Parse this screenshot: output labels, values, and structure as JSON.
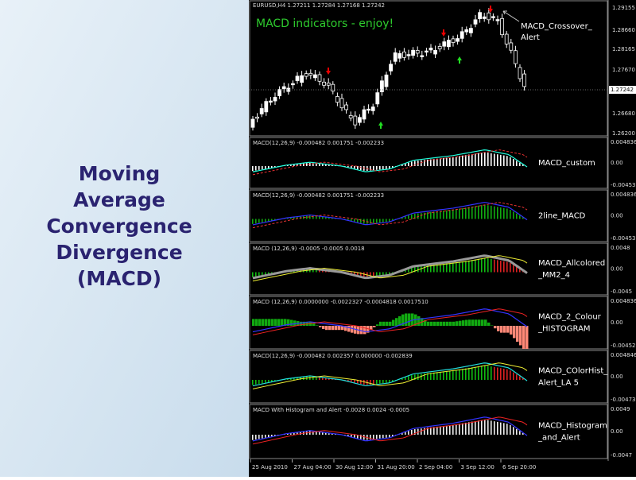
{
  "title_lines": [
    "Moving",
    "Average",
    "Convergence",
    "Divergence",
    "(MACD)"
  ],
  "main_panel": {
    "header": "EURUSD,H4  1.27211 1.27284 1.27168 1.27242",
    "overlay_text": "MACD indicators - enjoy!",
    "annotation_lines": [
      "MACD_Crossover_",
      "Alert"
    ],
    "axis_labels": [
      "1.29155",
      "1.28660",
      "1.28165",
      "1.27670",
      "1.26680",
      "1.26200"
    ],
    "current_price": "1.27242"
  },
  "panels": [
    {
      "header": "MACD(12,26,9) -0.000482 0.001751 -0.002233",
      "name_lines": [
        "MACD_custom"
      ],
      "axis_labels": [
        "0.004836",
        "0.00",
        "-0.00453"
      ]
    },
    {
      "header": "MACD(12,26,9) -0.000482 0.001751 -0.002233",
      "name_lines": [
        "2line_MACD"
      ],
      "axis_labels": [
        "0.004836",
        "0.00",
        "-0.00453"
      ]
    },
    {
      "header": "MACD (12,26,9) -0.0005 -0.0005 0.0018",
      "name_lines": [
        "MACD_Allcolored",
        "_MM2_4"
      ],
      "axis_labels": [
        "0.0048",
        "0.00",
        "-0.0045"
      ]
    },
    {
      "header": "MACD  (12,26,9) 0.0000000 -0.0022327 -0.0004818 0.0017510",
      "name_lines": [
        "MACD_2_Colour",
        "_HISTOGRAM"
      ],
      "axis_labels": [
        "0.004836",
        "0.00",
        "-0.00452"
      ]
    },
    {
      "header": "MACD(12,26,9) -0.000482 0.002357 0.000000 -0.002839",
      "name_lines": [
        "MACD_COlorHist_",
        "Alert_LA 5"
      ],
      "axis_labels": [
        "0.004846",
        "0.00",
        "-0.00473"
      ]
    },
    {
      "header": "MACD With Histogram and Alert -0.0028 0.0024 -0.0005",
      "name_lines": [
        "MACD_Histogram",
        "_and_Alert"
      ],
      "axis_labels": [
        "0.0049",
        "0.00",
        "-0.0047"
      ]
    }
  ],
  "time_axis": [
    "25 Aug 2010",
    "27 Aug 04:00",
    "30 Aug 12:00",
    "31 Aug 20:00",
    "2 Sep 04:00",
    "3 Sep 12:00",
    "6 Sep 20:00"
  ]
}
